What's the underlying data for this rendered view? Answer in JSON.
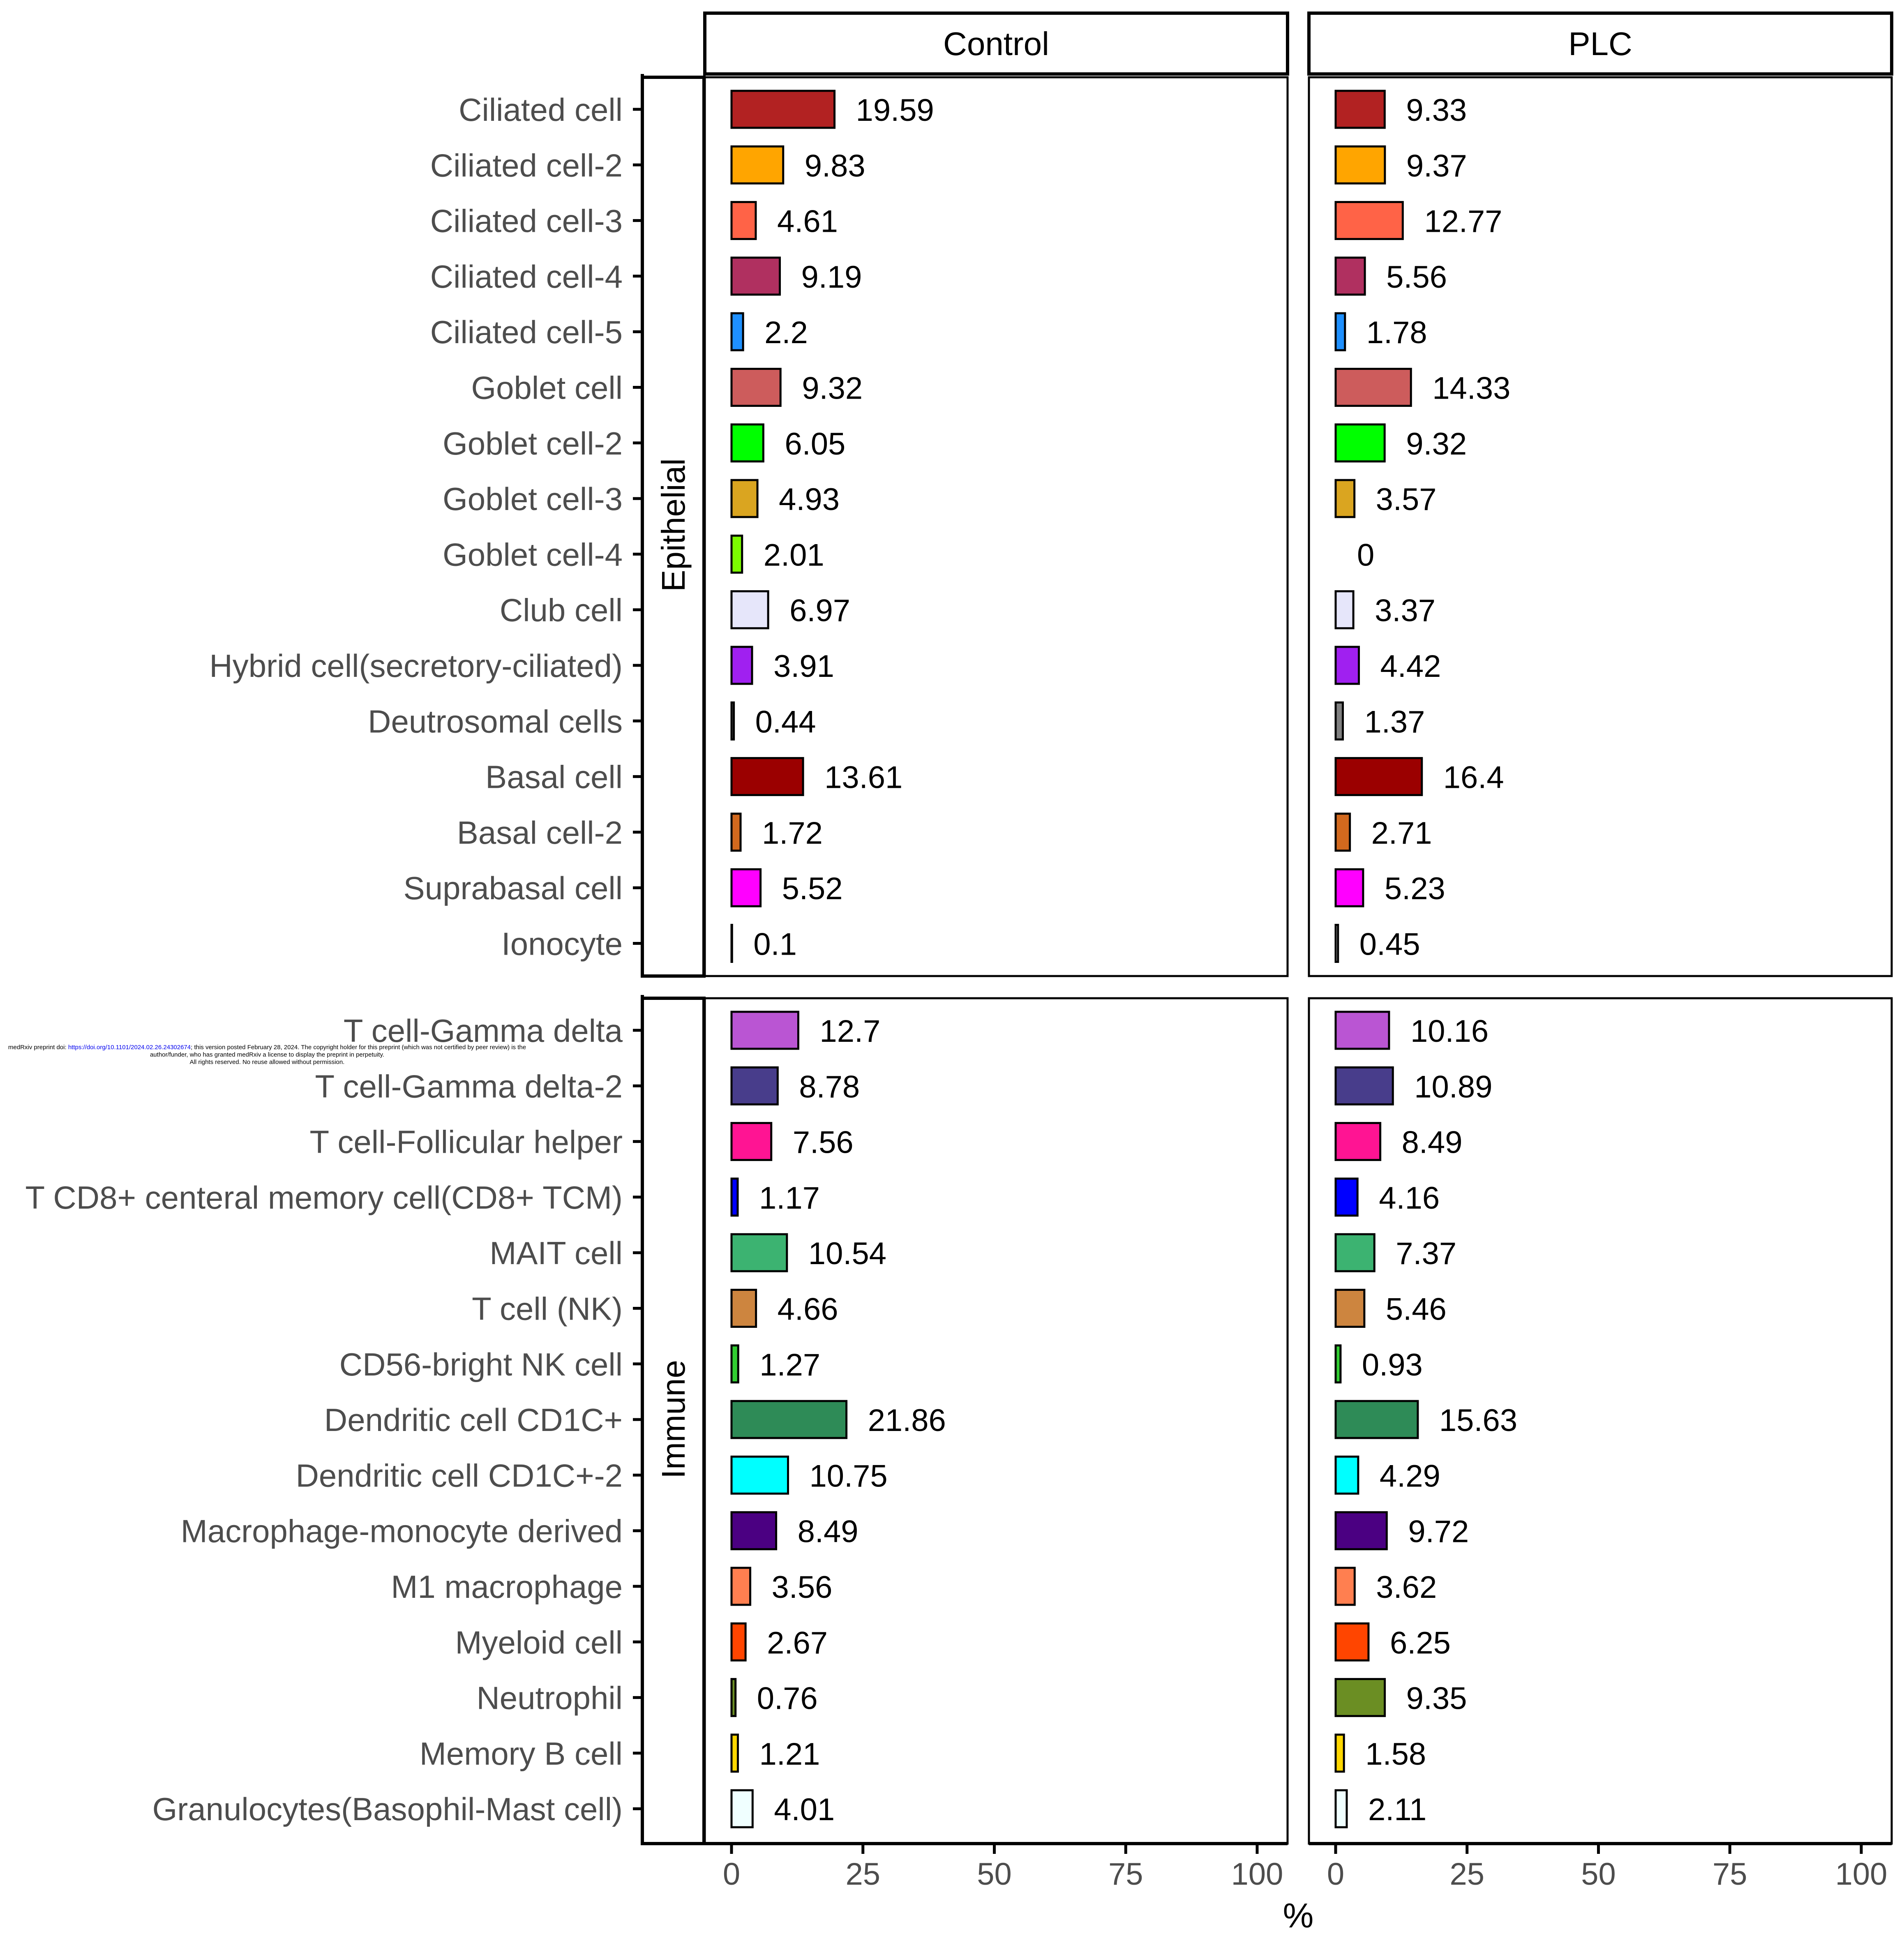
{
  "watermark": {
    "prefix": "medRxiv preprint doi: ",
    "doi": "https://doi.org/10.1101/2024.02.26.24302674",
    "suffix": "; this version posted February 28, 2024. The copyright holder for this preprint (which was not certified by peer review) is the author/funder, who has granted medRxiv a license to display the preprint in perpetuity.",
    "rights": "All rights reserved. No reuse allowed without permission."
  },
  "chart_data": {
    "type": "bar",
    "orientation": "horizontal",
    "facet_columns": [
      "Control",
      "PLC"
    ],
    "xlabel": "%",
    "xlim": [
      0,
      100
    ],
    "xticks": [
      0,
      25,
      50,
      75,
      100
    ],
    "grid": false,
    "groups": [
      {
        "name": "Epithelial",
        "rows": [
          {
            "label": "Ciliated cell",
            "color": "#B22222",
            "values": [
              19.59,
              9.33
            ]
          },
          {
            "label": "Ciliated cell-2",
            "color": "#FFA500",
            "values": [
              9.83,
              9.37
            ]
          },
          {
            "label": "Ciliated cell-3",
            "color": "#FF6347",
            "values": [
              4.61,
              12.77
            ]
          },
          {
            "label": "Ciliated cell-4",
            "color": "#B03060",
            "values": [
              9.19,
              5.56
            ]
          },
          {
            "label": "Ciliated cell-5",
            "color": "#1E90FF",
            "values": [
              2.2,
              1.78
            ]
          },
          {
            "label": "Goblet cell",
            "color": "#CD5C5C",
            "values": [
              9.32,
              14.33
            ]
          },
          {
            "label": "Goblet cell-2",
            "color": "#00FF00",
            "values": [
              6.05,
              9.32
            ]
          },
          {
            "label": "Goblet cell-3",
            "color": "#DAA520",
            "values": [
              4.93,
              3.57
            ]
          },
          {
            "label": "Goblet cell-4",
            "color": "#7CFC00",
            "values": [
              2.01,
              0
            ]
          },
          {
            "label": "Club cell",
            "color": "#E6E6FA",
            "values": [
              6.97,
              3.37
            ]
          },
          {
            "label": "Hybrid cell(secretory-ciliated)",
            "color": "#A020F0",
            "values": [
              3.91,
              4.42
            ]
          },
          {
            "label": "Deutrosomal cells",
            "color": "#808080",
            "values": [
              0.44,
              1.37
            ]
          },
          {
            "label": "Basal cell",
            "color": "#9B0000",
            "values": [
              13.61,
              16.4
            ]
          },
          {
            "label": "Basal cell-2",
            "color": "#D2691E",
            "values": [
              1.72,
              2.71
            ]
          },
          {
            "label": "Suprabasal cell",
            "color": "#FF00FF",
            "values": [
              5.52,
              5.23
            ]
          },
          {
            "label": "Ionocyte",
            "color": "#FFFFFF",
            "values": [
              0.1,
              0.45
            ]
          }
        ]
      },
      {
        "name": "Immune",
        "rows": [
          {
            "label": "T cell-Gamma delta",
            "color": "#BA55D3",
            "values": [
              12.7,
              10.16
            ]
          },
          {
            "label": "T cell-Gamma delta-2",
            "color": "#483D8B",
            "values": [
              8.78,
              10.89
            ]
          },
          {
            "label": "T cell-Follicular helper",
            "color": "#FF1493",
            "values": [
              7.56,
              8.49
            ]
          },
          {
            "label": "T CD8+ centeral memory cell(CD8+ TCM)",
            "color": "#0000FF",
            "values": [
              1.17,
              4.16
            ]
          },
          {
            "label": "MAIT cell",
            "color": "#3CB371",
            "values": [
              10.54,
              7.37
            ]
          },
          {
            "label": "T cell (NK)",
            "color": "#CD853F",
            "values": [
              4.66,
              5.46
            ]
          },
          {
            "label": "CD56-bright NK cell",
            "color": "#32CD32",
            "values": [
              1.27,
              0.93
            ]
          },
          {
            "label": "Dendritic cell CD1C+",
            "color": "#2E8B57",
            "values": [
              21.86,
              15.63
            ]
          },
          {
            "label": "Dendritic cell CD1C+-2",
            "color": "#00FFFF",
            "values": [
              10.75,
              4.29
            ]
          },
          {
            "label": "Macrophage-monocyte derived",
            "color": "#4B0082",
            "values": [
              8.49,
              9.72
            ]
          },
          {
            "label": "M1 macrophage",
            "color": "#FF7F50",
            "values": [
              3.56,
              3.62
            ]
          },
          {
            "label": "Myeloid cell",
            "color": "#FF4500",
            "values": [
              2.67,
              6.25
            ]
          },
          {
            "label": "Neutrophil",
            "color": "#6B8E23",
            "values": [
              0.76,
              9.35
            ]
          },
          {
            "label": "Memory B cell",
            "color": "#FFD700",
            "values": [
              1.21,
              1.58
            ]
          },
          {
            "label": "Granulocytes(Basophil-Mast cell)",
            "color": "#F0FFFF",
            "values": [
              4.01,
              2.11
            ]
          }
        ]
      }
    ]
  }
}
